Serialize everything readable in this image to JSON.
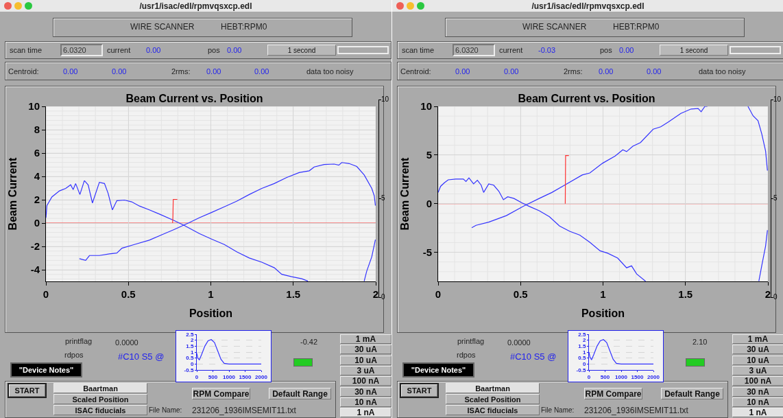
{
  "chart_data": [
    {
      "type": "line",
      "title": "Beam Current vs. Position",
      "xlabel": "Position",
      "ylabel": "Beam Current",
      "xlim": [
        0,
        2
      ],
      "ylim": [
        -5,
        10
      ],
      "xticks": [
        0,
        0.5,
        1,
        1.5,
        2
      ],
      "yticks": [
        -4,
        -2,
        0,
        2,
        4,
        6,
        8,
        10
      ],
      "grid": true,
      "ref_lines": [
        {
          "axis": "y",
          "value": 0,
          "color": "#ff3333"
        }
      ],
      "series": [
        {
          "color": "#3333ff",
          "x": [
            0,
            0.006,
            0.036,
            0.082,
            0.12,
            0.15,
            0.165,
            0.18,
            0.206,
            0.233,
            0.256,
            0.282,
            0.324,
            0.355,
            0.377,
            0.403,
            0.43,
            0.476,
            0.52,
            0.567,
            0.627,
            0.688,
            0.779,
            0.839,
            0.93,
            1.006,
            1.082,
            1.158,
            1.233,
            1.309,
            1.385,
            1.43,
            1.49,
            1.552,
            1.589
          ],
          "values": [
            0.46,
            1.5,
            2.24,
            2.76,
            2.97,
            3.28,
            2.87,
            3.39,
            2.45,
            3.64,
            3.28,
            1.72,
            3.49,
            3.39,
            2.55,
            1.13,
            1.92,
            1.97,
            1.82,
            1.46,
            1.13,
            0.77,
            0.21,
            -0.21,
            -0.9,
            -1.38,
            -1.84,
            -2.47,
            -2.99,
            -3.35,
            -3.83,
            -4.39,
            -4.6,
            -4.77,
            -4.98
          ]
        },
        {
          "color": "#3333ff",
          "x": [
            0.203,
            0.241,
            0.264,
            0.324,
            0.385,
            0.43,
            0.461,
            0.536,
            0.627,
            0.703,
            0.779,
            0.87,
            0.93,
            1.006,
            1.082,
            1.158,
            1.233,
            1.309,
            1.385,
            1.461,
            1.536,
            1.597,
            1.627,
            1.688,
            1.748,
            1.776,
            1.794,
            1.839,
            1.885,
            1.93,
            1.976,
            1.991,
            1.998
          ],
          "values": [
            -3.05,
            -3.2,
            -2.78,
            -2.78,
            -2.64,
            -2.57,
            -2.15,
            -1.84,
            -1.46,
            -1.0,
            -0.54,
            0.04,
            0.46,
            0.92,
            1.4,
            1.88,
            2.45,
            2.97,
            3.39,
            3.91,
            4.33,
            4.48,
            4.81,
            5.02,
            5.06,
            4.96,
            5.19,
            5.1,
            4.85,
            4.12,
            2.97,
            2.34,
            1.5
          ]
        },
        {
          "color": "#3333ff",
          "x": [
            1.93,
            1.945,
            1.976,
            1.998
          ],
          "values": [
            -4.98,
            -4.14,
            -2.89,
            -1.42
          ]
        },
        {
          "color": "#ff3333",
          "x": [
            0.768,
            0.77,
            0.772,
            0.797
          ],
          "values": [
            0,
            0.5,
            2.03,
            2.03
          ]
        }
      ]
    },
    {
      "type": "line",
      "xlim": [
        0,
        2000
      ],
      "ylim": [
        -0.5,
        2.5
      ],
      "xticks": [
        0,
        500,
        1000,
        1500,
        2000
      ],
      "yticks": [
        -0.5,
        0,
        0.5,
        1,
        1.5,
        2,
        2.5
      ],
      "grid": "y",
      "series": [
        {
          "color": "#3333ff",
          "x": [
            0,
            30,
            80,
            150,
            250,
            350,
            450,
            550,
            650,
            750,
            850,
            1000,
            2000
          ],
          "values": [
            0.9,
            0.5,
            0.35,
            0.8,
            1.5,
            1.95,
            2.05,
            1.8,
            1.1,
            0.4,
            0.05,
            0,
            0
          ]
        }
      ]
    },
    {
      "type": "other",
      "annotations": [
        "10",
        "5",
        "0"
      ]
    },
    {
      "type": "other",
      "annotations": [
        "/usr1/isac/edl/rpmvqsxcp.edl",
        "WIRE SCANNER",
        "HEBT:RPM0",
        "scan time",
        "6.0320",
        "current",
        "0.00",
        "pos",
        "0.00",
        "1 second",
        "Centroid:",
        "0.00",
        "0.00",
        "2rms:",
        "0.00",
        "0.00",
        "data too noisy",
        "printflag",
        "0.0000",
        "rdpos",
        "#C10 S5 @",
        "-0.42",
        "\"Device Notes\"",
        "START",
        "Baartman",
        "Scaled Position",
        "ISAC fiducials",
        "RPM Compare",
        "Default Range",
        "File Name:",
        "231206_1936IMSEMIT11.txt",
        "1 mA",
        "30 uA",
        "10 uA",
        "3 uA",
        "100 nA",
        "30 nA",
        "10 nA",
        "1 nA"
      ]
    },
    {
      "type": "line",
      "title": "Beam Current vs. Position",
      "xlabel": "Position",
      "ylabel": "Beam Current",
      "xlim": [
        0,
        2
      ],
      "ylim": [
        -8,
        10
      ],
      "xticks": [
        0,
        0.5,
        1,
        1.5,
        2
      ],
      "yticks": [
        -5,
        0,
        5,
        10
      ],
      "grid": true,
      "ref_lines": [
        {
          "axis": "y",
          "value": 0,
          "color": "#ff3333"
        }
      ],
      "series": [
        {
          "color": "#3333ff",
          "x": [
            0,
            0.015,
            0.038,
            0.061,
            0.107,
            0.153,
            0.169,
            0.187,
            0.215,
            0.238,
            0.261,
            0.276,
            0.307,
            0.337,
            0.368,
            0.396,
            0.422,
            0.46,
            0.506,
            0.552,
            0.613,
            0.675,
            0.736,
            0.798,
            0.859,
            0.92,
            0.982,
            1.028,
            1.089,
            1.143,
            1.173,
            1.204,
            1.258
          ],
          "values": [
            1.15,
            1.78,
            2.15,
            2.45,
            2.53,
            2.53,
            2.28,
            2.65,
            2.03,
            2.4,
            1.9,
            1.15,
            2.03,
            1.9,
            1.28,
            0.4,
            0.7,
            0.53,
            0.1,
            -0.28,
            -0.73,
            -1.35,
            -2.3,
            -2.85,
            -3.23,
            -3.98,
            -4.85,
            -5.1,
            -5.6,
            -6.6,
            -6.4,
            -7.23,
            -7.98
          ]
        },
        {
          "color": "#3333ff",
          "x": [
            0.204,
            0.23,
            0.307,
            0.414,
            0.521,
            0.613,
            0.69,
            0.767,
            0.874,
            0.92,
            0.997,
            1.074,
            1.12,
            1.143,
            1.181,
            1.227,
            1.304,
            1.35,
            1.396,
            1.472,
            1.534,
            1.577,
            1.595,
            1.618,
            1.633,
            1.75,
            1.879,
            1.91,
            1.94,
            1.963,
            1.986,
            1.997
          ],
          "values": [
            -2.48,
            -2.23,
            -1.9,
            -1.23,
            -0.23,
            0.53,
            1.15,
            1.9,
            2.95,
            3.15,
            4.15,
            4.9,
            5.53,
            5.35,
            5.9,
            6.28,
            7.65,
            7.9,
            8.4,
            9.28,
            9.73,
            9.78,
            9.45,
            10,
            10,
            null,
            10,
            9.03,
            8.53,
            7.15,
            5.4,
            3.4
          ]
        },
        {
          "color": "#3333ff",
          "x": [
            1.945,
            1.963,
            1.986,
            1.997
          ],
          "values": [
            -7.98,
            -6.35,
            -4.35,
            -2.73
          ]
        },
        {
          "color": "#ff3333",
          "x": [
            0.771,
            0.772,
            0.773,
            0.793
          ],
          "values": [
            0,
            2.5,
            4.95,
            4.95
          ]
        }
      ]
    },
    {
      "type": "line",
      "xlim": [
        0,
        2000
      ],
      "ylim": [
        -0.5,
        2.5
      ],
      "xticks": [
        0,
        500,
        1000,
        1500,
        2000
      ],
      "yticks": [
        -0.5,
        0,
        0.5,
        1,
        1.5,
        2,
        2.5
      ],
      "grid": "y",
      "series": [
        {
          "color": "#3333ff",
          "x": [
            0,
            30,
            80,
            150,
            250,
            350,
            450,
            550,
            650,
            750,
            850,
            1000,
            2000
          ],
          "values": [
            1.0,
            0.6,
            0.35,
            0.8,
            1.5,
            1.95,
            2.05,
            1.8,
            1.1,
            0.4,
            0.05,
            0,
            0
          ]
        }
      ]
    },
    {
      "type": "other",
      "annotations": [
        "10",
        "5",
        "0"
      ]
    },
    {
      "type": "other",
      "annotations": [
        "/usr1/isac/edl/rpmvqsxcp.edl",
        "WIRE SCANNER",
        "HEBT:RPM0",
        "scan time",
        "6.0320",
        "current",
        "-0.03",
        "pos",
        "0.00",
        "1 second",
        "Centroid:",
        "0.00",
        "0.00",
        "2rms:",
        "0.00",
        "0.00",
        "data too noisy",
        "printflag",
        "0.0000",
        "rdpos",
        "#C10 S5 @",
        "2.10",
        "\"Device Notes\"",
        "START",
        "Baartman",
        "Scaled Position",
        "ISAC fiducials",
        "RPM Compare",
        "Default Range",
        "File Name:",
        "231206_1936IMSEMIT11.txt",
        "1 mA",
        "30 uA",
        "10 uA",
        "3 uA",
        "100 nA",
        "30 nA",
        "10 nA",
        "1 nA"
      ]
    }
  ]
}
